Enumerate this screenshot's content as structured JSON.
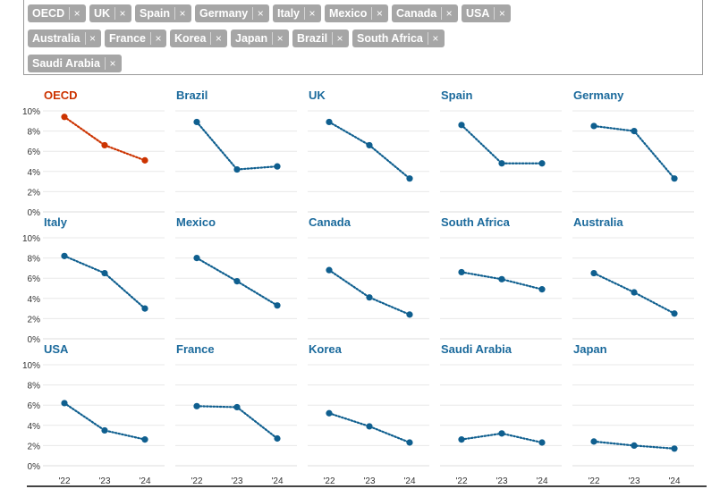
{
  "filter_tags": [
    "OECD",
    "UK",
    "Spain",
    "Germany",
    "Italy",
    "Mexico",
    "Canada",
    "USA",
    "Australia",
    "France",
    "Korea",
    "Japan",
    "Brazil",
    "South Africa",
    "Saudi Arabia"
  ],
  "remove_glyph": "×",
  "colors": {
    "highlight": "#cc3300",
    "series": "#0f5f8f",
    "title": "#1b6a9c",
    "tag_bg": "#a6a6a6"
  },
  "chart_data": {
    "type": "line",
    "layout": "small-multiples",
    "x": [
      "'22",
      "'23",
      "'24"
    ],
    "ylim": [
      0,
      10
    ],
    "yticks": [
      "10%",
      "8%",
      "6%",
      "4%",
      "2%",
      "0%"
    ],
    "line_style": "dotted",
    "grid": true,
    "panels": [
      {
        "name": "OECD",
        "values": [
          9.4,
          6.6,
          5.1
        ],
        "highlight": true
      },
      {
        "name": "Brazil",
        "values": [
          8.9,
          4.2,
          4.5
        ]
      },
      {
        "name": "UK",
        "values": [
          8.9,
          6.6,
          3.3
        ]
      },
      {
        "name": "Spain",
        "values": [
          8.6,
          4.8,
          4.8
        ]
      },
      {
        "name": "Germany",
        "values": [
          8.5,
          8.0,
          3.3
        ]
      },
      {
        "name": "Italy",
        "values": [
          8.2,
          6.5,
          3.0
        ]
      },
      {
        "name": "Mexico",
        "values": [
          8.0,
          5.7,
          3.3
        ]
      },
      {
        "name": "Canada",
        "values": [
          6.8,
          4.1,
          2.4
        ]
      },
      {
        "name": "South Africa",
        "values": [
          6.6,
          5.9,
          4.9
        ]
      },
      {
        "name": "Australia",
        "values": [
          6.5,
          4.6,
          2.5
        ]
      },
      {
        "name": "USA",
        "values": [
          6.2,
          3.5,
          2.6
        ]
      },
      {
        "name": "France",
        "values": [
          5.9,
          5.8,
          2.7
        ]
      },
      {
        "name": "Korea",
        "values": [
          5.2,
          3.9,
          2.3
        ]
      },
      {
        "name": "Saudi Arabia",
        "values": [
          2.6,
          3.2,
          2.3
        ]
      },
      {
        "name": "Japan",
        "values": [
          2.4,
          2.0,
          1.7
        ]
      }
    ]
  }
}
